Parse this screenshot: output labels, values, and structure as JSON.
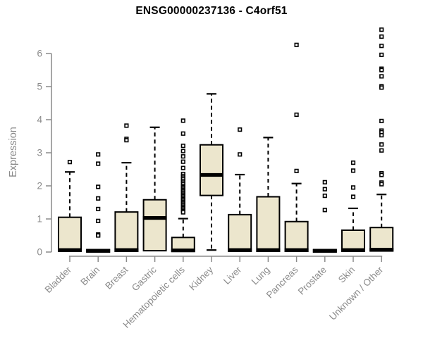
{
  "chart_data": {
    "type": "boxplot",
    "title": "ENSG00000237136 - C4orf51",
    "ylabel": "Expression",
    "xlabel": "",
    "ylim": [
      0,
      6.8
    ],
    "yticks": [
      0,
      1,
      2,
      3,
      4,
      5,
      6
    ],
    "grid": "off",
    "legend": "none",
    "categories": [
      "Bladder",
      "Brain",
      "Breast",
      "Gastric",
      "Hematopoietic cells",
      "Kidney",
      "Liver",
      "Lung",
      "Pancreas",
      "Prostate",
      "Skin",
      "Unknown / Other"
    ],
    "series": [
      {
        "name": "Bladder",
        "whisker_low": 0.02,
        "q1": 0.02,
        "median": 0.06,
        "q3": 1.05,
        "whisker_high": 2.42,
        "outliers": [
          2.72
        ]
      },
      {
        "name": "Brain",
        "whisker_low": 0.0,
        "q1": 0.0,
        "median": 0.04,
        "q3": 0.07,
        "whisker_high": 0.07,
        "outliers": [
          2.95,
          2.67,
          1.97,
          1.62,
          1.3,
          0.94,
          0.53,
          0.5
        ]
      },
      {
        "name": "Breast",
        "whisker_low": 0.02,
        "q1": 0.02,
        "median": 0.06,
        "q3": 1.21,
        "whisker_high": 2.7,
        "outliers": [
          3.82,
          3.42,
          3.38
        ]
      },
      {
        "name": "Gastric",
        "whisker_low": 0.04,
        "q1": 0.04,
        "median": 1.03,
        "q3": 1.58,
        "whisker_high": 3.77,
        "outliers": []
      },
      {
        "name": "Hematopoietic cells",
        "whisker_low": 0.02,
        "q1": 0.02,
        "median": 0.05,
        "q3": 0.44,
        "whisker_high": 1.01,
        "outliers": [
          3.97,
          3.58,
          3.21,
          3.05,
          2.89,
          2.73,
          2.54,
          2.36,
          2.3,
          2.25,
          2.2,
          2.15,
          2.1,
          2.05,
          2.0,
          1.96,
          1.92,
          1.88,
          1.84,
          1.8,
          1.76,
          1.72,
          1.68,
          1.64,
          1.6,
          1.56,
          1.52,
          1.48,
          1.44,
          1.4,
          1.36,
          1.32,
          1.28,
          1.24,
          1.2
        ]
      },
      {
        "name": "Kidney",
        "whisker_low": 0.06,
        "q1": 1.71,
        "median": 2.33,
        "q3": 3.24,
        "whisker_high": 4.78,
        "outliers": []
      },
      {
        "name": "Liver",
        "whisker_low": 0.02,
        "q1": 0.02,
        "median": 0.06,
        "q3": 1.13,
        "whisker_high": 2.34,
        "outliers": [
          3.7,
          2.95
        ]
      },
      {
        "name": "Lung",
        "whisker_low": 0.02,
        "q1": 0.02,
        "median": 0.06,
        "q3": 1.67,
        "whisker_high": 3.46,
        "outliers": []
      },
      {
        "name": "Pancreas",
        "whisker_low": 0.02,
        "q1": 0.02,
        "median": 0.06,
        "q3": 0.92,
        "whisker_high": 2.07,
        "outliers": [
          6.26,
          4.15,
          2.45
        ]
      },
      {
        "name": "Prostate",
        "whisker_low": 0.0,
        "q1": 0.0,
        "median": 0.04,
        "q3": 0.07,
        "whisker_high": 0.07,
        "outliers": [
          2.11,
          1.9,
          1.7,
          1.27
        ]
      },
      {
        "name": "Skin",
        "whisker_low": 0.02,
        "q1": 0.02,
        "median": 0.06,
        "q3": 0.66,
        "whisker_high": 1.32,
        "outliers": [
          2.7,
          2.46,
          1.95,
          1.67
        ]
      },
      {
        "name": "Unknown / Other",
        "whisker_low": 0.03,
        "q1": 0.03,
        "median": 0.07,
        "q3": 0.74,
        "whisker_high": 1.74,
        "outliers": [
          6.72,
          6.51,
          6.23,
          5.96,
          5.54,
          5.5,
          5.31,
          5.01,
          4.97,
          3.96,
          3.67,
          3.62,
          3.53,
          3.25,
          3.07,
          2.38,
          2.33,
          2.1,
          2.05
        ]
      }
    ],
    "colors": {
      "box_fill": "#ece6cd",
      "box_stroke": "#000000",
      "median": "#000000",
      "axis": "#8a8a8a",
      "title": "#000000"
    }
  }
}
